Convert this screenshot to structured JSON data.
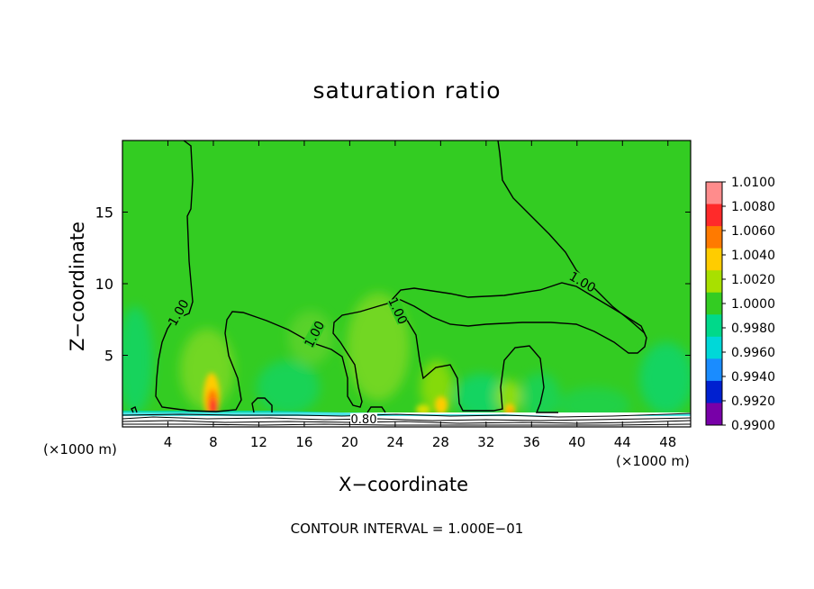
{
  "chart_data": {
    "type": "heatmap",
    "title": "saturation ratio",
    "xlabel": "X−coordinate",
    "ylabel": "Z−coordinate",
    "x_unit_left": "(×1000 m)",
    "x_unit_right": "(×1000 m)",
    "footer": "CONTOUR INTERVAL = 1.000E−01",
    "xlim": [
      0,
      50
    ],
    "ylim": [
      0,
      20
    ],
    "x_ticks": [
      4,
      8,
      12,
      16,
      20,
      24,
      28,
      32,
      36,
      40,
      44,
      48
    ],
    "x_tick_labels": [
      "4",
      "8",
      "12",
      "16",
      "20",
      "24",
      "28",
      "32",
      "36",
      "40",
      "44",
      "48"
    ],
    "y_ticks": [
      5,
      10,
      15
    ],
    "y_tick_labels": [
      "5",
      "10",
      "15"
    ],
    "colorbar": {
      "range": [
        0.99,
        1.01
      ],
      "tick_labels": [
        "1.0100",
        "1.0080",
        "1.0060",
        "1.0040",
        "1.0020",
        "1.0000",
        "0.9980",
        "0.9960",
        "0.9940",
        "0.9920",
        "0.9900"
      ],
      "colors": [
        "#ff8c8c",
        "#ff2a2a",
        "#ff7a00",
        "#ffcc00",
        "#a8e000",
        "#33cc22",
        "#00d98a",
        "#00d8d8",
        "#1a8cff",
        "#0020d0",
        "#7800a8"
      ]
    },
    "contour_labels": [
      {
        "text": "1.00",
        "x": 4.9,
        "z": 7.8,
        "angle": -60
      },
      {
        "text": "1.00",
        "x": 16.9,
        "z": 6.9,
        "angle": -62
      },
      {
        "text": "1.00",
        "x": 24.5,
        "z": 8.3,
        "angle": 65
      },
      {
        "text": "1.00",
        "x": 41.0,
        "z": 10.1,
        "angle": 30
      },
      {
        "text": "0.80",
        "x": 22.2,
        "z": 0.55,
        "angle": 0
      }
    ],
    "grid": false,
    "legend": "colorbar-right"
  }
}
